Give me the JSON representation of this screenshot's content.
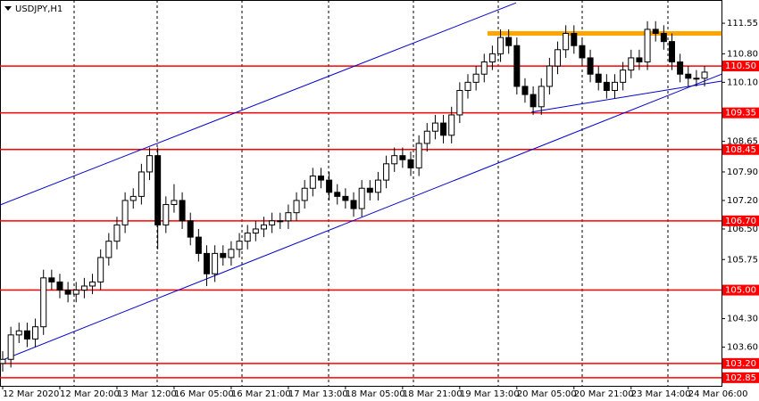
{
  "chart_data": {
    "type": "candlestick",
    "title": "USDJPY,H1",
    "x": [
      "12 Mar 2020",
      null,
      null,
      null,
      null,
      null,
      null,
      "12 Mar 20:00",
      null,
      null,
      null,
      null,
      null,
      null,
      "13 Mar 12:00",
      null,
      null,
      null,
      null,
      null,
      null,
      "16 Mar 05:00",
      null,
      null,
      null,
      null,
      null,
      null,
      "16 Mar 21:00",
      null,
      null,
      null,
      null,
      null,
      null,
      "17 Mar 13:00",
      null,
      null,
      null,
      null,
      null,
      null,
      "18 Mar 05:00",
      null,
      null,
      null,
      null,
      null,
      null,
      "18 Mar 21:00",
      null,
      null,
      null,
      null,
      null,
      null,
      "19 Mar 13:00",
      null,
      null,
      null,
      null,
      null,
      null,
      "20 Mar 05:00",
      null,
      null,
      null,
      null,
      null,
      null,
      "20 Mar 21:00",
      null,
      null,
      null,
      null,
      null,
      null,
      "23 Mar 14:00",
      null,
      null,
      null,
      null,
      null,
      null,
      "24 Mar 06:00",
      null,
      null
    ],
    "open": [
      103.2,
      103.3,
      103.9,
      104,
      103.8,
      104.1,
      105.3,
      105.2,
      105,
      104.9,
      105,
      105.1,
      105.2,
      105.8,
      106.2,
      106.6,
      107.2,
      107.3,
      107.9,
      108.3,
      106.6,
      107.1,
      107.2,
      106.7,
      106.3,
      105.9,
      105.4,
      105.9,
      105.8,
      106,
      106.2,
      106.4,
      106.5,
      106.6,
      106.7,
      106.7,
      106.9,
      107.2,
      107.5,
      107.8,
      107.7,
      107.4,
      107.3,
      107.2,
      107,
      107.5,
      107.4,
      107.7,
      108.1,
      108.3,
      108.2,
      108,
      108.6,
      108.9,
      109.1,
      108.8,
      109.3,
      109.9,
      110.1,
      110.3,
      110.6,
      110.8,
      111.2,
      111,
      110,
      109.8,
      109.5,
      110,
      110.5,
      110.9,
      111.3,
      111,
      110.7,
      110.3,
      110.1,
      109.9,
      110.1,
      110.4,
      110.7,
      110.6,
      111.4,
      111.3,
      111.1,
      110.6,
      110.3,
      110.2,
      110.2
    ],
    "high": [
      103.5,
      104.1,
      104.2,
      104.2,
      104.3,
      105.5,
      105.5,
      105.4,
      105.2,
      105.2,
      105.3,
      105.4,
      106,
      106.4,
      106.8,
      107.4,
      107.5,
      108.1,
      108.5,
      108.5,
      107.3,
      107.6,
      107.4,
      106.9,
      106.5,
      106.1,
      106.1,
      106.1,
      106.2,
      106.4,
      106.6,
      106.7,
      106.8,
      106.9,
      106.9,
      107.1,
      107.4,
      107.7,
      108,
      108,
      107.9,
      107.6,
      107.5,
      107.4,
      107.7,
      107.7,
      107.9,
      108.3,
      108.5,
      108.5,
      108.4,
      108.8,
      109.1,
      109.3,
      109.3,
      109.5,
      110.1,
      110.3,
      110.5,
      110.8,
      111,
      111.4,
      111.4,
      111.2,
      110.2,
      110,
      110.2,
      110.7,
      111.1,
      111.5,
      111.5,
      111.2,
      110.9,
      110.5,
      110.3,
      110.3,
      110.6,
      110.9,
      110.9,
      111.6,
      111.6,
      111.5,
      111.3,
      110.8,
      110.5,
      110.4,
      110.5
    ],
    "low": [
      103,
      103.1,
      103.7,
      103.6,
      103.6,
      103.9,
      105,
      104.8,
      104.7,
      104.7,
      104.8,
      104.9,
      105,
      105.6,
      106,
      106.4,
      107,
      107.1,
      107.7,
      106,
      106.4,
      106.9,
      106.5,
      106.1,
      105.7,
      105.1,
      105.2,
      105.6,
      105.6,
      105.8,
      106,
      106.2,
      106.3,
      106.4,
      106.5,
      106.5,
      106.7,
      107,
      107.3,
      107.5,
      107.2,
      107.1,
      107,
      106.8,
      106.8,
      107.2,
      107.2,
      107.5,
      107.9,
      108,
      107.8,
      107.8,
      108.4,
      108.7,
      108.6,
      108.6,
      109.1,
      109.7,
      109.9,
      110.1,
      110.4,
      110.6,
      110.8,
      109.8,
      109.6,
      109.3,
      109.3,
      109.8,
      110.3,
      110.7,
      110.8,
      110.5,
      110.1,
      109.9,
      109.7,
      109.7,
      109.9,
      110.2,
      110.4,
      110.4,
      111.1,
      110.9,
      110.4,
      110.1,
      110,
      110,
      110
    ],
    "close": [
      103.3,
      103.9,
      104,
      103.8,
      104.1,
      105.3,
      105.2,
      105,
      104.9,
      105,
      105.1,
      105.2,
      105.8,
      106.2,
      106.6,
      107.2,
      107.3,
      107.9,
      108.3,
      106.6,
      107.1,
      107.2,
      106.7,
      106.3,
      105.9,
      105.4,
      105.9,
      105.8,
      106,
      106.2,
      106.4,
      106.5,
      106.6,
      106.7,
      106.7,
      106.9,
      107.2,
      107.5,
      107.8,
      107.7,
      107.4,
      107.3,
      107.2,
      107,
      107.5,
      107.4,
      107.7,
      108.1,
      108.3,
      108.2,
      108,
      108.6,
      108.9,
      109.1,
      108.8,
      109.3,
      109.9,
      110.1,
      110.3,
      110.6,
      110.8,
      111.2,
      111,
      110,
      109.8,
      109.5,
      110,
      110.5,
      110.9,
      111.3,
      111,
      110.7,
      110.3,
      110.1,
      109.9,
      110.1,
      110.4,
      110.7,
      110.6,
      111.4,
      111.3,
      111.1,
      110.6,
      110.3,
      110.2,
      110.2,
      110.35
    ],
    "ylim": [
      102.65,
      112.12
    ],
    "yticks": [
      111.55,
      {
        "value": 110.8,
        "label": "110.80"
      },
      {
        "value": 110.1,
        "label": "110.10"
      },
      108.65,
      {
        "value": 107.9,
        "label": "107.90"
      },
      {
        "value": 107.2,
        "label": "107.20"
      },
      {
        "value": 106.5,
        "label": "106.50"
      },
      105.75,
      {
        "value": 104.3,
        "label": "104.30"
      },
      {
        "value": 103.6,
        "label": "103.60"
      }
    ],
    "levels_color": "#ff0000",
    "levels": [
      {
        "value": 110.5,
        "label": "110.50"
      },
      {
        "value": 109.35,
        "label": "109.35"
      },
      {
        "value": 108.45,
        "label": "108.45"
      },
      {
        "value": 106.7,
        "label": "106.70"
      },
      {
        "value": 105,
        "label": "105.00"
      },
      {
        "value": 103.2,
        "label": "103.20"
      },
      {
        "value": 102.85,
        "label": "102.85"
      }
    ],
    "trendlines": [
      {
        "color": "#0000cc",
        "x": [
          -0.33,
          62.9
        ],
        "y": [
          107.09,
          112.05
        ]
      },
      {
        "color": "#0000cc",
        "x": [
          -0.33,
          88.1
        ],
        "y": [
          103.26,
          110.3
        ]
      },
      {
        "color": "#0000cc",
        "x": [
          64.8,
          88.1
        ],
        "y": [
          109.37,
          110.13
        ]
      }
    ],
    "resistance": {
      "color": "#ffa500",
      "x": [
        59.4,
        88.1
      ],
      "y": [
        111.3,
        111.3
      ]
    }
  }
}
